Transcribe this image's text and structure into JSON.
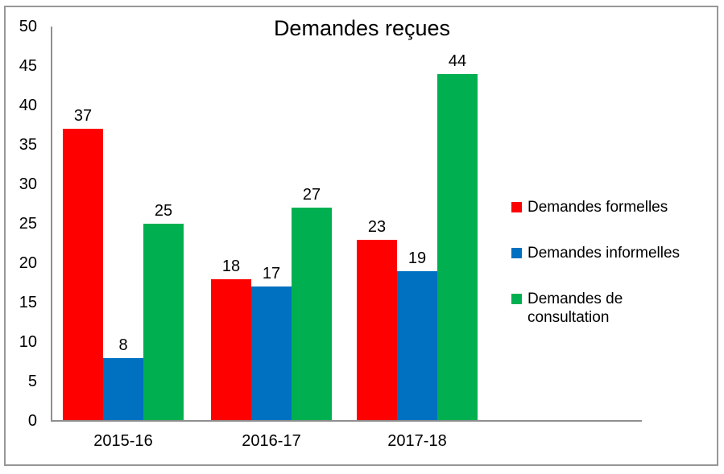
{
  "title": "Demandes reçues",
  "chart_data": {
    "type": "bar",
    "title": "Demandes reçues",
    "categories": [
      "2015-16",
      "2016-17",
      "2017-18"
    ],
    "series": [
      {
        "name": "Demandes formelles",
        "color": "#FF0000",
        "values": [
          37,
          18,
          23
        ]
      },
      {
        "name": "Demandes informelles",
        "color": "#0070C0",
        "values": [
          8,
          17,
          19
        ]
      },
      {
        "name": "Demandes de consultation",
        "color": "#00B050",
        "values": [
          25,
          27,
          44
        ]
      }
    ],
    "ylim": [
      0,
      50
    ],
    "yticks": [
      0,
      5,
      10,
      15,
      20,
      25,
      30,
      35,
      40,
      45,
      50
    ],
    "grid": false,
    "data_labels": true,
    "legend_position": "right"
  },
  "colors": {
    "axis_line": "#8f8f8f",
    "frame_border": "#979797",
    "text": "#000000"
  }
}
